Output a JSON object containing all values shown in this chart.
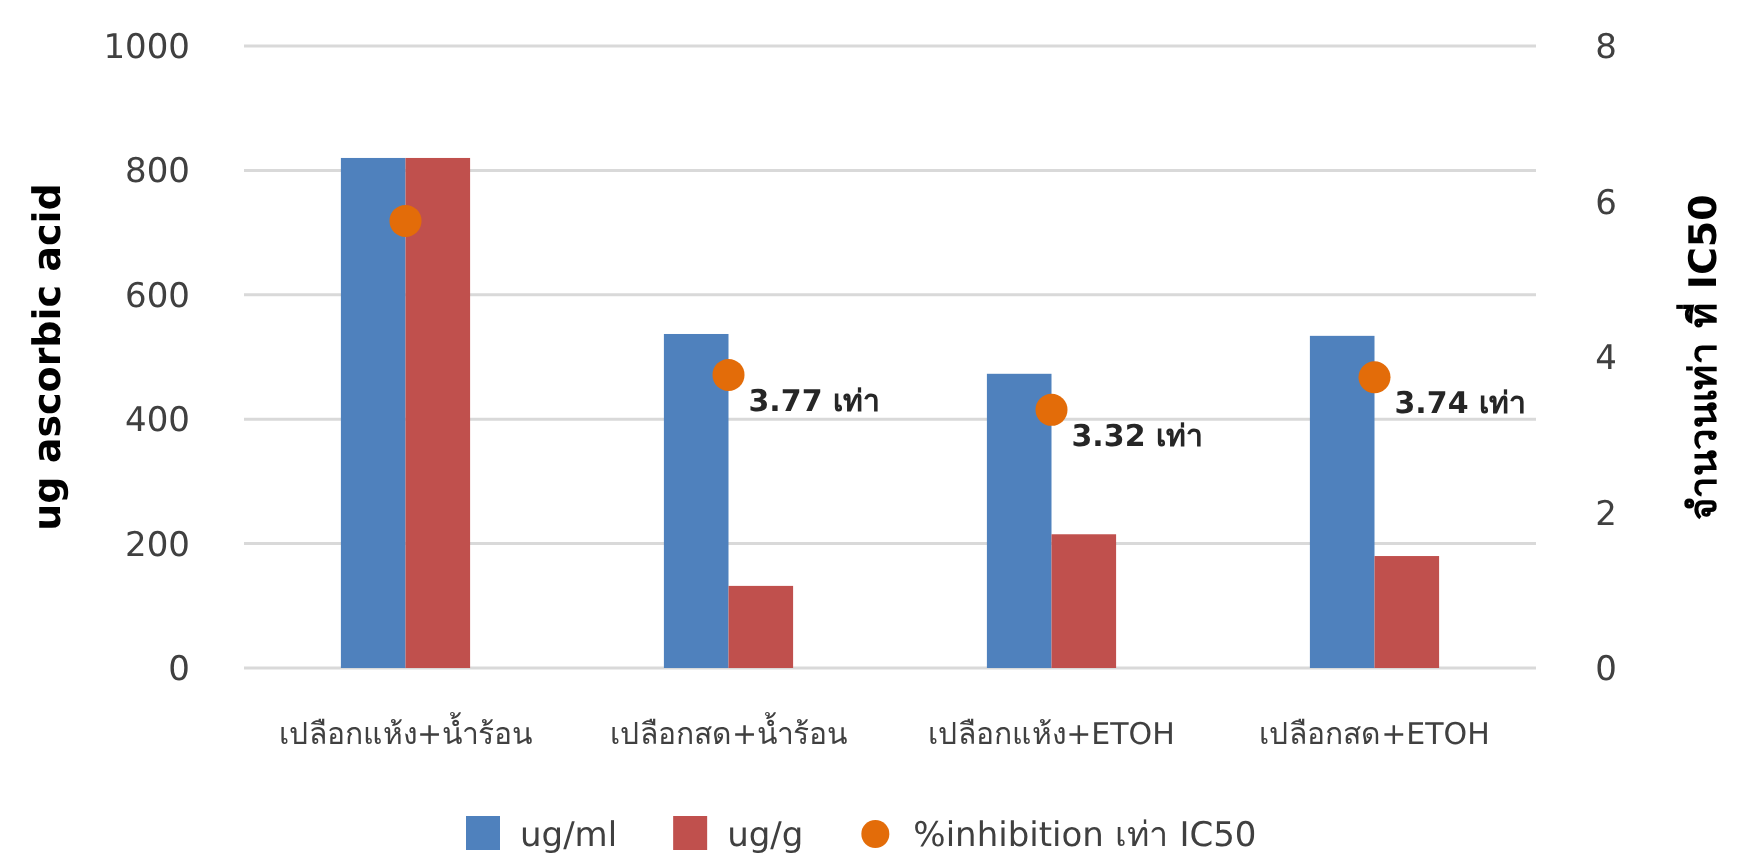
{
  "chart_data": {
    "type": "bar",
    "categories": [
      "เปลือกแห้ง+น้ำร้อน",
      "เปลือกสด+น้ำร้อน",
      "เปลือกแห้ง+ETOH",
      "เปลือกสด+ETOH"
    ],
    "ylabel": "ug ascorbic acid",
    "y2label": "จำนวนเท่า ที่ IC50",
    "ylim": [
      0,
      1000
    ],
    "yticks": [
      0,
      200,
      400,
      600,
      800,
      1000
    ],
    "y2lim": [
      0,
      8
    ],
    "y2ticks": [
      0,
      2,
      4,
      6,
      8
    ],
    "grid": "y",
    "legend": "bottom",
    "series": [
      {
        "name": "ug/ml",
        "color": "#4f81bd",
        "values": [
          820,
          537,
          473,
          534
        ]
      },
      {
        "name": "ug/g",
        "color": "#c0504d",
        "values": [
          820,
          132,
          215,
          180
        ]
      },
      {
        "name": "%inhibition เท่า IC50",
        "type": "scatter",
        "axis": "y2",
        "marker": "circle",
        "color": "#e36c09",
        "values": [
          5.75,
          3.77,
          3.32,
          3.74
        ],
        "value_labels": [
          null,
          "3.77 เท่า",
          "3.32 เท่า",
          "3.74 เท่า"
        ]
      }
    ]
  }
}
